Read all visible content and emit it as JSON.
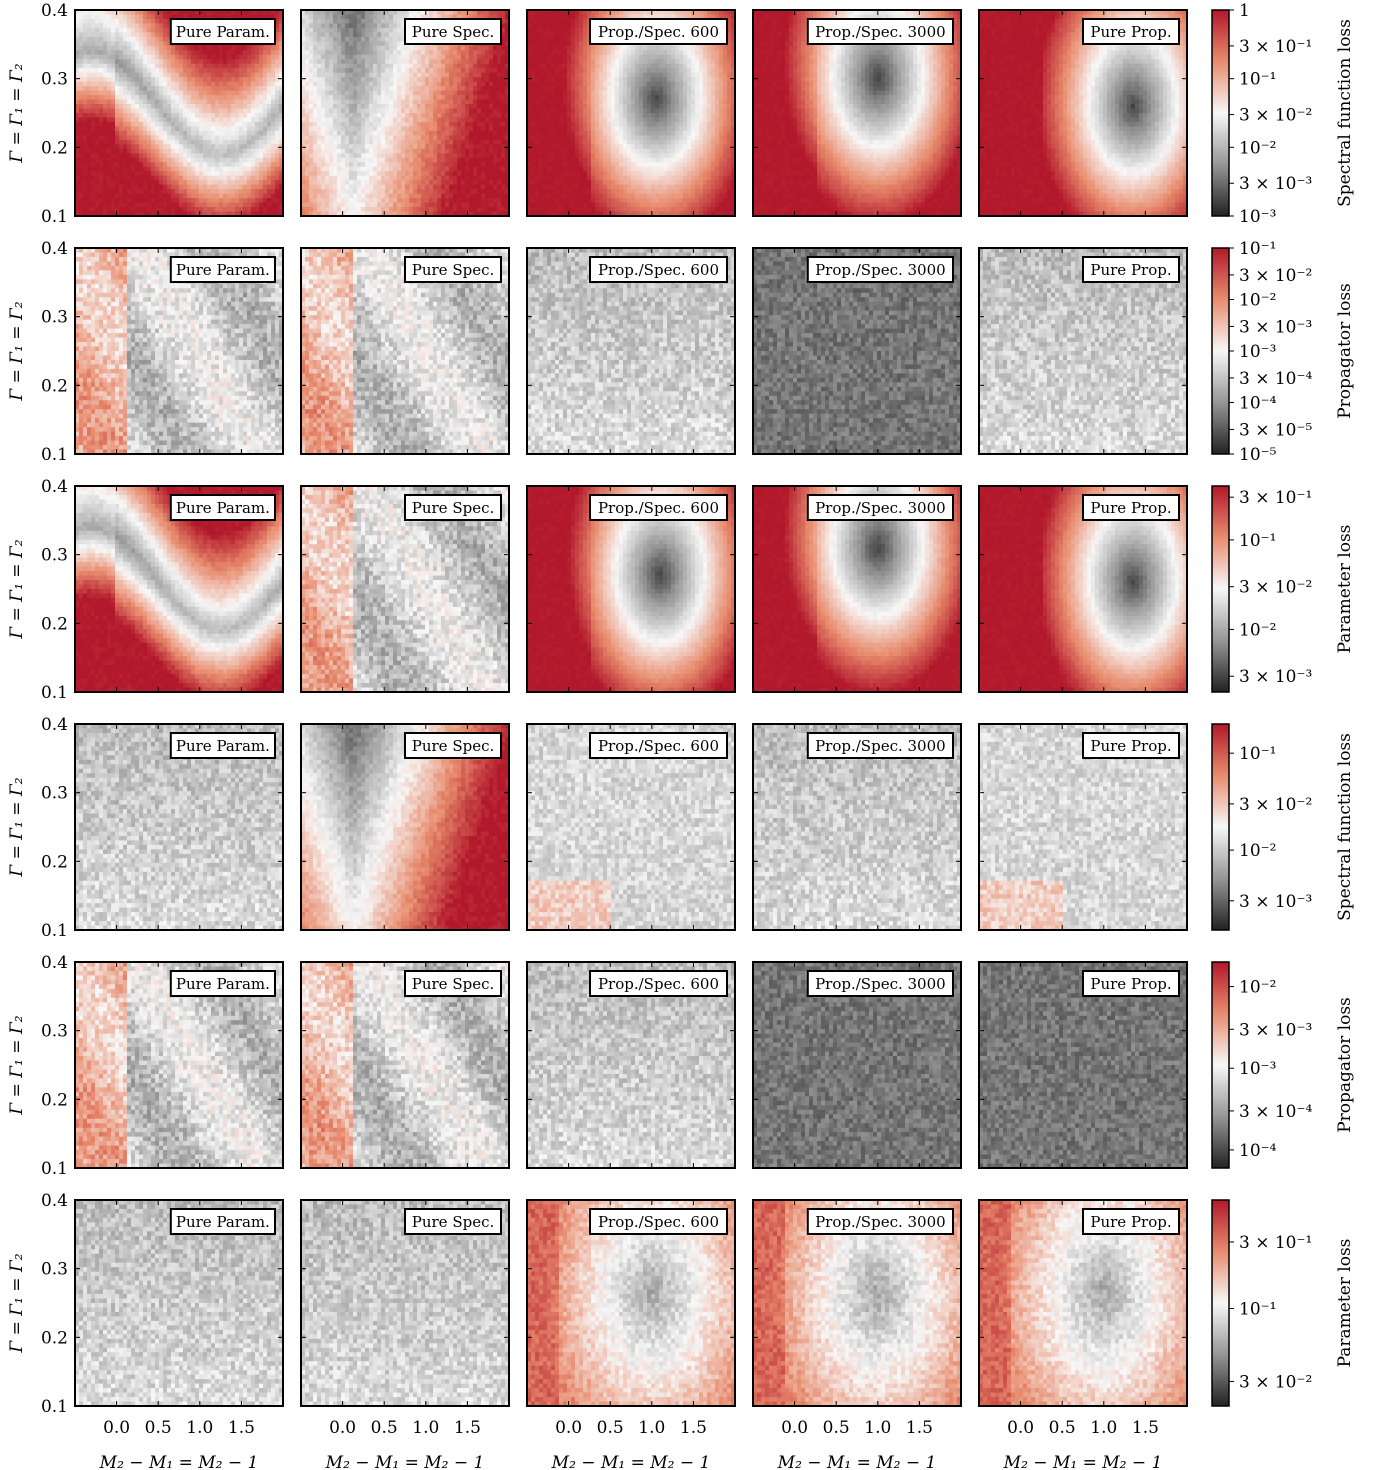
{
  "figure": {
    "panel_labels": [
      "Pure Param.",
      "Pure Spec.",
      "Prop./Spec. 600",
      "Prop./Spec. 3000",
      "Pure Prop."
    ],
    "xlabel": "M₂ − M₁ = M₂ − 1",
    "ylabel": "Γ = Γ₁ = Γ₂",
    "colors": {
      "low": "#222222",
      "mid": "#f7f7f7",
      "high": "#b2182b"
    }
  },
  "chart_data": [
    {
      "type": "heatmap",
      "row": 1,
      "colorbar_label": "Spectral function loss",
      "colorbar_ticks": [
        "1",
        "3 × 10⁻¹",
        "10⁻¹",
        "3 × 10⁻²",
        "10⁻²",
        "3 × 10⁻³",
        "10⁻³"
      ],
      "colorbar_range": [
        0.001,
        1
      ],
      "x_range": [
        -0.5,
        2.0
      ],
      "y_range": [
        0.1,
        0.4
      ],
      "x_ticks": [
        "0.0",
        "0.5",
        "1.0",
        "1.5"
      ],
      "y_ticks": [
        "0.1",
        "0.2",
        "0.3",
        "0.4"
      ],
      "panels": [
        {
          "label": "Pure Param.",
          "minimum": [
            0.0,
            0.28
          ],
          "pattern": "valley"
        },
        {
          "label": "Pure Spec.",
          "minimum": [
            -0.1,
            0.3
          ],
          "pattern": "vertical"
        },
        {
          "label": "Prop./Spec. 600",
          "minimum": [
            1.05,
            0.27
          ],
          "pattern": "blob"
        },
        {
          "label": "Prop./Spec. 3000",
          "minimum": [
            1.0,
            0.3
          ],
          "pattern": "blob"
        },
        {
          "label": "Pure Prop.",
          "minimum": [
            1.35,
            0.26
          ],
          "pattern": "blob"
        }
      ]
    },
    {
      "type": "heatmap",
      "row": 2,
      "colorbar_label": "Propagator loss",
      "colorbar_ticks": [
        "10⁻¹",
        "3 × 10⁻²",
        "10⁻²",
        "3 × 10⁻³",
        "10⁻³",
        "3 × 10⁻⁴",
        "10⁻⁴",
        "3 × 10⁻⁵",
        "10⁻⁵"
      ],
      "colorbar_range": [
        1e-05,
        0.1
      ],
      "x_range": [
        -0.5,
        2.0
      ],
      "y_range": [
        0.1,
        0.4
      ],
      "x_ticks": [
        "0.0",
        "0.5",
        "1.0",
        "1.5"
      ],
      "y_ticks": [
        "0.1",
        "0.2",
        "0.3",
        "0.4"
      ],
      "panels": [
        {
          "label": "Pure Param.",
          "pattern": "mixed"
        },
        {
          "label": "Pure Spec.",
          "pattern": "mixed"
        },
        {
          "label": "Prop./Spec. 600",
          "pattern": "gray-noise"
        },
        {
          "label": "Prop./Spec. 3000",
          "pattern": "gray-noise-dark"
        },
        {
          "label": "Pure Prop.",
          "pattern": "gray-noise"
        }
      ]
    },
    {
      "type": "heatmap",
      "row": 3,
      "colorbar_label": "Parameter loss",
      "colorbar_ticks": [
        "3 × 10⁻¹",
        "10⁻¹",
        "3 × 10⁻²",
        "10⁻²",
        "3 × 10⁻³"
      ],
      "colorbar_range": [
        0.002,
        0.4
      ],
      "x_range": [
        -0.5,
        2.0
      ],
      "y_range": [
        0.1,
        0.4
      ],
      "x_ticks": [
        "0.0",
        "0.5",
        "1.0",
        "1.5"
      ],
      "y_ticks": [
        "0.1",
        "0.2",
        "0.3",
        "0.4"
      ],
      "panels": [
        {
          "label": "Pure Param.",
          "minimum": [
            1.4,
            0.26
          ],
          "pattern": "valley"
        },
        {
          "label": "Pure Spec.",
          "minimum": [
            1.8,
            0.28
          ],
          "pattern": "mixed"
        },
        {
          "label": "Prop./Spec. 600",
          "minimum": [
            1.1,
            0.27
          ],
          "pattern": "blob"
        },
        {
          "label": "Prop./Spec. 3000",
          "minimum": [
            1.0,
            0.31
          ],
          "pattern": "blob"
        },
        {
          "label": "Pure Prop.",
          "minimum": [
            1.35,
            0.26
          ],
          "pattern": "blob"
        }
      ]
    },
    {
      "type": "heatmap",
      "row": 4,
      "colorbar_label": "Spectral function loss",
      "colorbar_ticks": [
        "10⁻¹",
        "3 × 10⁻²",
        "10⁻²",
        "3 × 10⁻³"
      ],
      "colorbar_range": [
        0.0015,
        0.2
      ],
      "x_range": [
        -0.5,
        2.0
      ],
      "y_range": [
        0.1,
        0.4
      ],
      "x_ticks": [
        "0.0",
        "0.5",
        "1.0",
        "1.5"
      ],
      "y_ticks": [
        "0.1",
        "0.2",
        "0.3",
        "0.4"
      ],
      "panels": [
        {
          "label": "Pure Param.",
          "pattern": "gray-noise"
        },
        {
          "label": "Pure Spec.",
          "pattern": "vertical"
        },
        {
          "label": "Prop./Spec. 600",
          "pattern": "gray-noise-light"
        },
        {
          "label": "Prop./Spec. 3000",
          "pattern": "gray-noise"
        },
        {
          "label": "Pure Prop.",
          "pattern": "gray-noise-light"
        }
      ]
    },
    {
      "type": "heatmap",
      "row": 5,
      "colorbar_label": "Propagator loss",
      "colorbar_ticks": [
        "10⁻²",
        "3 × 10⁻³",
        "10⁻³",
        "3 × 10⁻⁴",
        "10⁻⁴"
      ],
      "colorbar_range": [
        6e-05,
        0.02
      ],
      "x_range": [
        -0.5,
        2.0
      ],
      "y_range": [
        0.1,
        0.4
      ],
      "x_ticks": [
        "0.0",
        "0.5",
        "1.0",
        "1.5"
      ],
      "y_ticks": [
        "0.1",
        "0.2",
        "0.3",
        "0.4"
      ],
      "panels": [
        {
          "label": "Pure Param.",
          "pattern": "mixed"
        },
        {
          "label": "Pure Spec.",
          "pattern": "mixed"
        },
        {
          "label": "Prop./Spec. 600",
          "pattern": "gray-noise"
        },
        {
          "label": "Prop./Spec. 3000",
          "pattern": "gray-noise-dark"
        },
        {
          "label": "Pure Prop.",
          "pattern": "gray-noise-dark"
        }
      ]
    },
    {
      "type": "heatmap",
      "row": 6,
      "colorbar_label": "Parameter loss",
      "colorbar_ticks": [
        "3 × 10⁻¹",
        "10⁻¹",
        "3 × 10⁻²"
      ],
      "colorbar_range": [
        0.02,
        0.6
      ],
      "x_range": [
        -0.5,
        2.0
      ],
      "y_range": [
        0.1,
        0.4
      ],
      "x_ticks": [
        "0.0",
        "0.5",
        "1.0",
        "1.5"
      ],
      "y_ticks": [
        "0.1",
        "0.2",
        "0.3",
        "0.4"
      ],
      "panels": [
        {
          "label": "Pure Param.",
          "pattern": "gray-noise"
        },
        {
          "label": "Pure Spec.",
          "pattern": "gray-noise"
        },
        {
          "label": "Prop./Spec. 600",
          "pattern": "blob-light"
        },
        {
          "label": "Prop./Spec. 3000",
          "pattern": "blob-light"
        },
        {
          "label": "Pure Prop.",
          "pattern": "blob-light"
        }
      ]
    }
  ]
}
